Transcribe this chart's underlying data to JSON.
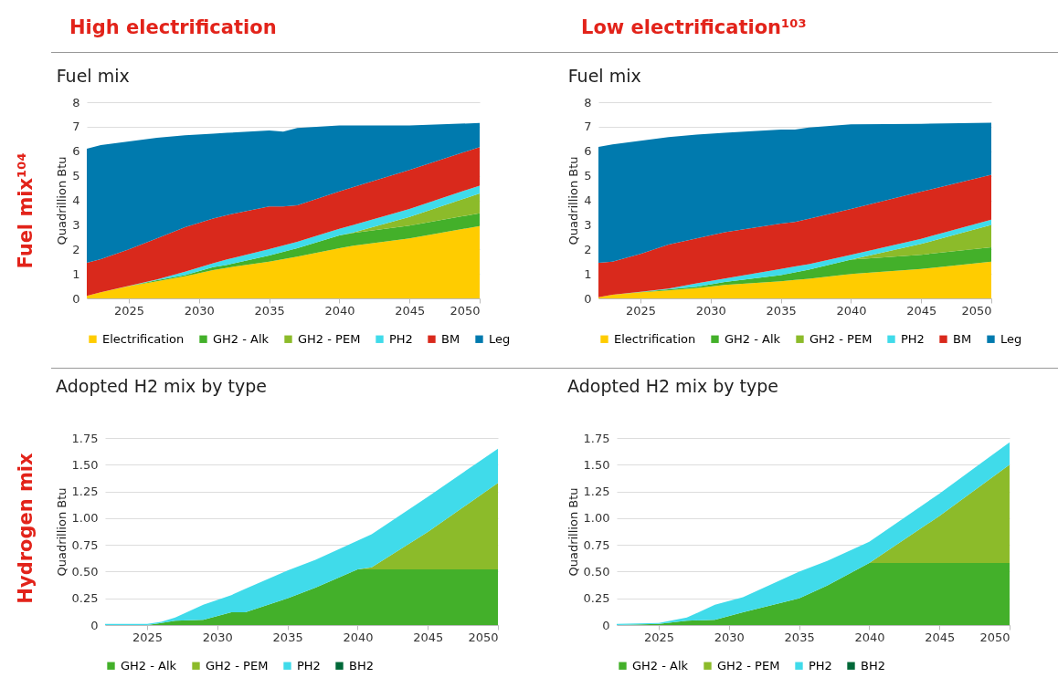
{
  "chart_data": [
    {
      "type": "area",
      "title": "Fuel mix",
      "ylabel": "Quadrillion Btu",
      "stacked": true,
      "grid": "y",
      "legend": "bottom",
      "annotations": [
        "High electrification",
        "Fuel mix¹⁰⁴"
      ],
      "x": [
        2022,
        2023,
        2025,
        2027,
        2029,
        2031,
        2032,
        2035,
        2036,
        2037,
        2040,
        2041,
        2045,
        2050
      ],
      "xlim": [
        2022,
        2050
      ],
      "xticks": [
        2025,
        2030,
        2035,
        2040,
        2045,
        2050
      ],
      "ylim": [
        0,
        8
      ],
      "yticks": [
        0,
        1,
        2,
        3,
        4,
        5,
        6,
        7,
        8
      ],
      "series": [
        {
          "name": "Electrification",
          "color": "#ffcc00",
          "values": [
            0.1,
            0.25,
            0.5,
            0.7,
            0.9,
            1.15,
            1.25,
            1.5,
            1.6,
            1.7,
            2.05,
            2.15,
            2.45,
            2.95
          ]
        },
        {
          "name": "GH2 - Alk",
          "color": "#43b02a",
          "values": [
            0,
            0,
            0,
            0.04,
            0.05,
            0.12,
            0.12,
            0.25,
            0.3,
            0.35,
            0.52,
            0.52,
            0.52,
            0.52
          ]
        },
        {
          "name": "GH2 - PEM",
          "color": "#8cbb2a",
          "values": [
            0,
            0,
            0,
            0,
            0,
            0,
            0,
            0,
            0,
            0,
            0,
            0.02,
            0.35,
            0.81
          ]
        },
        {
          "name": "PH2",
          "color": "#40dbea",
          "values": [
            0,
            0,
            0.01,
            0.03,
            0.14,
            0.16,
            0.22,
            0.26,
            0.26,
            0.26,
            0.27,
            0.31,
            0.33,
            0.32
          ]
        },
        {
          "name": "BM",
          "color": "#d9291c",
          "values": [
            1.35,
            1.35,
            1.49,
            1.68,
            1.81,
            1.83,
            1.81,
            1.74,
            1.59,
            1.49,
            1.52,
            1.54,
            1.59,
            1.57
          ]
        },
        {
          "name": "Leg",
          "color": "#007aae",
          "values": [
            4.65,
            4.65,
            4.4,
            4.1,
            3.75,
            3.46,
            3.35,
            3.1,
            3.05,
            3.15,
            2.69,
            2.51,
            1.81,
            0.98
          ]
        }
      ]
    },
    {
      "type": "area",
      "title": "Fuel mix",
      "ylabel": "Quadrillion Btu",
      "stacked": true,
      "grid": "y",
      "legend": "bottom",
      "annotations": [
        "Low electrification¹⁰³"
      ],
      "x": [
        2022,
        2023,
        2025,
        2027,
        2029,
        2031,
        2035,
        2036,
        2037,
        2040,
        2045,
        2050
      ],
      "xlim": [
        2022,
        2050
      ],
      "xticks": [
        2025,
        2030,
        2035,
        2040,
        2045,
        2050
      ],
      "ylim": [
        0,
        8
      ],
      "yticks": [
        0,
        1,
        2,
        3,
        4,
        5,
        6,
        7,
        8
      ],
      "series": [
        {
          "name": "Electrification",
          "color": "#ffcc00",
          "values": [
            0.05,
            0.15,
            0.25,
            0.33,
            0.42,
            0.55,
            0.7,
            0.75,
            0.8,
            1.0,
            1.2,
            1.5
          ]
        },
        {
          "name": "GH2 - Alk",
          "color": "#43b02a",
          "values": [
            0,
            0,
            0.01,
            0.04,
            0.05,
            0.12,
            0.25,
            0.31,
            0.37,
            0.58,
            0.58,
            0.58
          ]
        },
        {
          "name": "GH2 - PEM",
          "color": "#8cbb2a",
          "values": [
            0,
            0,
            0,
            0,
            0,
            0,
            0,
            0,
            0,
            0,
            0.44,
            0.92
          ]
        },
        {
          "name": "PH2",
          "color": "#40dbea",
          "values": [
            0,
            0,
            0.01,
            0.03,
            0.14,
            0.14,
            0.25,
            0.24,
            0.23,
            0.2,
            0.21,
            0.21
          ]
        },
        {
          "name": "BM",
          "color": "#d9291c",
          "values": [
            1.4,
            1.35,
            1.54,
            1.8,
            1.84,
            1.89,
            1.85,
            1.82,
            1.85,
            1.87,
            1.92,
            1.83
          ]
        },
        {
          "name": "Leg",
          "color": "#007aae",
          "values": [
            4.73,
            4.78,
            4.62,
            4.38,
            4.23,
            4.05,
            3.83,
            3.76,
            3.72,
            3.45,
            2.77,
            2.12
          ]
        }
      ]
    },
    {
      "type": "area",
      "title": "Adopted H2 mix by type",
      "ylabel": "Quadrillion Btu",
      "stacked": true,
      "grid": "y",
      "legend": "bottom",
      "annotations": [
        "Hydrogen mix"
      ],
      "x": [
        2022,
        2025,
        2026,
        2027,
        2029,
        2031,
        2032,
        2035,
        2037,
        2040,
        2041,
        2045,
        2050
      ],
      "xlim": [
        2022,
        2050
      ],
      "xticks": [
        2025,
        2030,
        2035,
        2040,
        2045,
        2050
      ],
      "ylim": [
        0,
        1.75
      ],
      "yticks": [
        0,
        0.25,
        {
          "value": 0.5,
          "label": "0.50"
        },
        0.75,
        {
          "value": 1,
          "label": "1.00"
        },
        1.25,
        {
          "value": 1.5,
          "label": "1.50"
        },
        1.75
      ],
      "series": [
        {
          "name": "GH2 - Alk",
          "color": "#43b02a",
          "values": [
            0,
            0,
            0.02,
            0.04,
            0.05,
            0.12,
            0.12,
            0.25,
            0.35,
            0.52,
            0.52,
            0.52,
            0.52
          ]
        },
        {
          "name": "GH2 - PEM",
          "color": "#8cbb2a",
          "values": [
            0,
            0,
            0,
            0,
            0,
            0,
            0,
            0,
            0,
            0,
            0.02,
            0.35,
            0.81
          ]
        },
        {
          "name": "PH2",
          "color": "#40dbea",
          "values": [
            0.01,
            0.01,
            0.01,
            0.03,
            0.14,
            0.16,
            0.22,
            0.26,
            0.26,
            0.27,
            0.31,
            0.33,
            0.32
          ]
        },
        {
          "name": "BH2",
          "color": "#006838",
          "values": [
            null,
            null,
            null,
            null,
            null,
            null,
            null,
            null,
            null,
            null,
            null,
            null,
            null
          ]
        }
      ]
    },
    {
      "type": "area",
      "title": "Adopted H2 mix by type",
      "ylabel": "Quadrillion Btu",
      "stacked": true,
      "grid": "y",
      "legend": "bottom",
      "x": [
        2022,
        2025,
        2027,
        2029,
        2031,
        2035,
        2037,
        2040,
        2045,
        2050
      ],
      "xlim": [
        2022,
        2050
      ],
      "xticks": [
        2025,
        2030,
        2035,
        2040,
        2045,
        2050
      ],
      "ylim": [
        0,
        1.75
      ],
      "yticks": [
        0,
        0.25,
        {
          "value": 0.5,
          "label": "0.50"
        },
        0.75,
        {
          "value": 1,
          "label": "1.00"
        },
        1.25,
        {
          "value": 1.5,
          "label": "1.50"
        },
        1.75
      ],
      "series": [
        {
          "name": "GH2 - Alk",
          "color": "#43b02a",
          "values": [
            0,
            0.01,
            0.04,
            0.05,
            0.12,
            0.25,
            0.37,
            0.58,
            0.58,
            0.58
          ]
        },
        {
          "name": "GH2 - PEM",
          "color": "#8cbb2a",
          "values": [
            0,
            0,
            0,
            0,
            0,
            0,
            0,
            0,
            0.44,
            0.92
          ]
        },
        {
          "name": "PH2",
          "color": "#40dbea",
          "values": [
            0.01,
            0.01,
            0.03,
            0.14,
            0.14,
            0.25,
            0.23,
            0.2,
            0.21,
            0.21
          ]
        },
        {
          "name": "BH2",
          "color": "#006838",
          "values": [
            null,
            null,
            null,
            null,
            null,
            null,
            null,
            null,
            null,
            null
          ]
        }
      ]
    }
  ]
}
